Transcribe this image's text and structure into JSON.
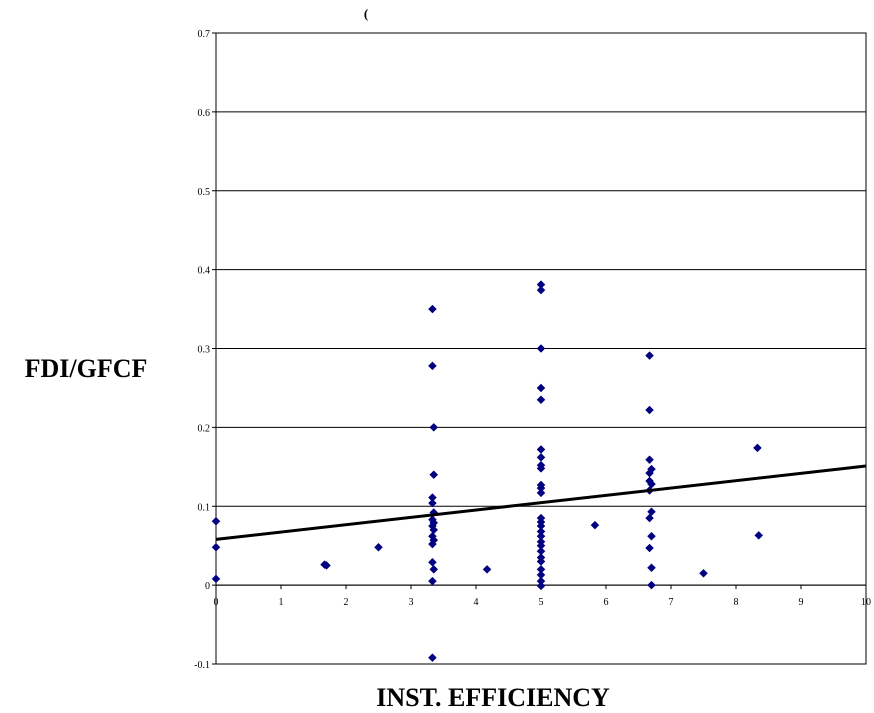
{
  "chart_data": {
    "type": "scatter",
    "title": "(",
    "xlabel": "INST. EFFICIENCY",
    "ylabel": "FDI/GFCF",
    "xlim": [
      0,
      10
    ],
    "ylim": [
      -0.1,
      0.7
    ],
    "x_ticks": [
      "0",
      "1",
      "2",
      "3",
      "4",
      "5",
      "6",
      "7",
      "8",
      "9",
      "10"
    ],
    "y_ticks": [
      "-0.1",
      "0",
      "0.1",
      "0.2",
      "0.3",
      "0.4",
      "0.5",
      "0.6",
      "0.7"
    ],
    "grid": "horizontal",
    "marker_color": "#000080",
    "trend_line": {
      "x": [
        0,
        10
      ],
      "y": [
        0.058,
        0.151
      ]
    },
    "points": [
      [
        0,
        0.081
      ],
      [
        0,
        0.048
      ],
      [
        0,
        0.008
      ],
      [
        1.67,
        0.026
      ],
      [
        1.7,
        0.025
      ],
      [
        2.5,
        0.048
      ],
      [
        3.33,
        0.35
      ],
      [
        3.33,
        0.278
      ],
      [
        3.35,
        0.2
      ],
      [
        3.35,
        0.14
      ],
      [
        3.33,
        0.111
      ],
      [
        3.33,
        0.104
      ],
      [
        3.35,
        0.092
      ],
      [
        3.33,
        0.083
      ],
      [
        3.35,
        0.079
      ],
      [
        3.33,
        0.075
      ],
      [
        3.35,
        0.07
      ],
      [
        3.33,
        0.062
      ],
      [
        3.35,
        0.057
      ],
      [
        3.33,
        0.052
      ],
      [
        3.33,
        0.029
      ],
      [
        3.35,
        0.02
      ],
      [
        3.33,
        0.005
      ],
      [
        3.33,
        -0.092
      ],
      [
        4.17,
        0.02
      ],
      [
        5,
        0.381
      ],
      [
        5,
        0.374
      ],
      [
        5,
        0.3
      ],
      [
        5,
        0.25
      ],
      [
        5,
        0.235
      ],
      [
        5,
        0.172
      ],
      [
        5,
        0.162
      ],
      [
        5,
        0.152
      ],
      [
        5,
        0.148
      ],
      [
        5,
        0.127
      ],
      [
        5,
        0.123
      ],
      [
        5,
        0.117
      ],
      [
        5,
        0.085
      ],
      [
        5,
        0.08
      ],
      [
        5,
        0.075
      ],
      [
        5,
        0.068
      ],
      [
        5,
        0.062
      ],
      [
        5,
        0.055
      ],
      [
        5,
        0.05
      ],
      [
        5,
        0.043
      ],
      [
        5,
        0.035
      ],
      [
        5,
        0.03
      ],
      [
        5,
        0.02
      ],
      [
        5,
        0.013
      ],
      [
        5,
        0.005
      ],
      [
        5,
        -0.001
      ],
      [
        5.83,
        0.076
      ],
      [
        6.67,
        0.291
      ],
      [
        6.67,
        0.222
      ],
      [
        6.67,
        0.159
      ],
      [
        6.7,
        0.147
      ],
      [
        6.67,
        0.142
      ],
      [
        6.67,
        0.132
      ],
      [
        6.7,
        0.128
      ],
      [
        6.67,
        0.12
      ],
      [
        6.7,
        0.093
      ],
      [
        6.67,
        0.085
      ],
      [
        6.7,
        0.062
      ],
      [
        6.67,
        0.047
      ],
      [
        6.7,
        0.022
      ],
      [
        6.7,
        0.0
      ],
      [
        7.5,
        0.015
      ],
      [
        8.33,
        0.174
      ],
      [
        8.35,
        0.063
      ]
    ]
  }
}
